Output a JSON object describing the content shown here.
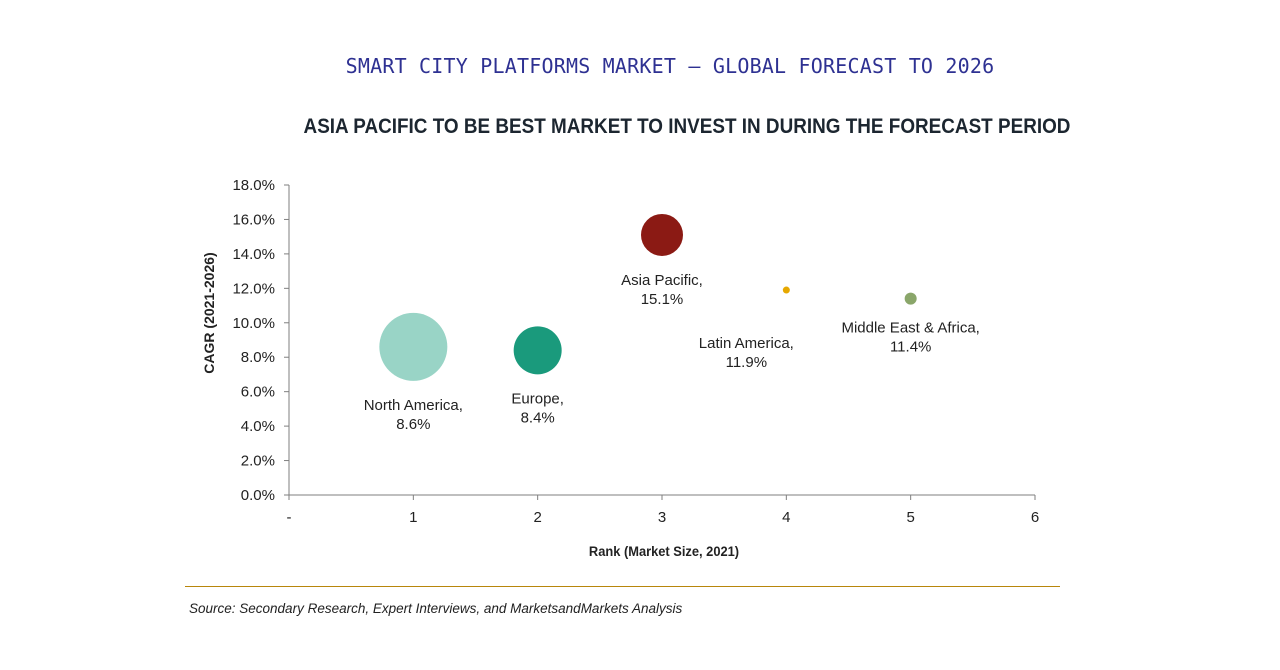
{
  "chart_data": {
    "type": "scatter",
    "title": "SMART CITY PLATFORMS MARKET – GLOBAL FORECAST TO 2026",
    "subtitle": "ASIA PACIFIC TO BE BEST MARKET TO INVEST IN DURING THE FORECAST PERIOD",
    "xlabel": "Rank (Market Size, 2021)",
    "ylabel": "CAGR (2021-2026)",
    "xlim": [
      0,
      6
    ],
    "ylim": [
      0,
      18
    ],
    "x_tick_labels": [
      "-",
      "1",
      "2",
      "3",
      "4",
      "5",
      "6"
    ],
    "y_tick_labels": [
      "0.0%",
      "2.0%",
      "4.0%",
      "6.0%",
      "8.0%",
      "10.0%",
      "12.0%",
      "14.0%",
      "16.0%",
      "18.0%"
    ],
    "series": [
      {
        "name": "North America",
        "x": 1,
        "y": 8.6,
        "label": "8.6%",
        "color": "#99d4c6"
      },
      {
        "name": "Europe",
        "x": 2,
        "y": 8.4,
        "label": "8.4%",
        "color": "#1a9a7c"
      },
      {
        "name": "Asia Pacific",
        "x": 3,
        "y": 15.1,
        "label": "15.1%",
        "color": "#8b1a14"
      },
      {
        "name": "Latin America",
        "x": 4,
        "y": 11.9,
        "label": "11.9%",
        "color": "#e6a800"
      },
      {
        "name": "Middle East & Africa",
        "x": 5,
        "y": 11.4,
        "label": "11.4%",
        "color": "#8aa66a"
      }
    ]
  },
  "source": "Source: Secondary Research, Expert Interviews, and MarketsandMarkets Analysis"
}
